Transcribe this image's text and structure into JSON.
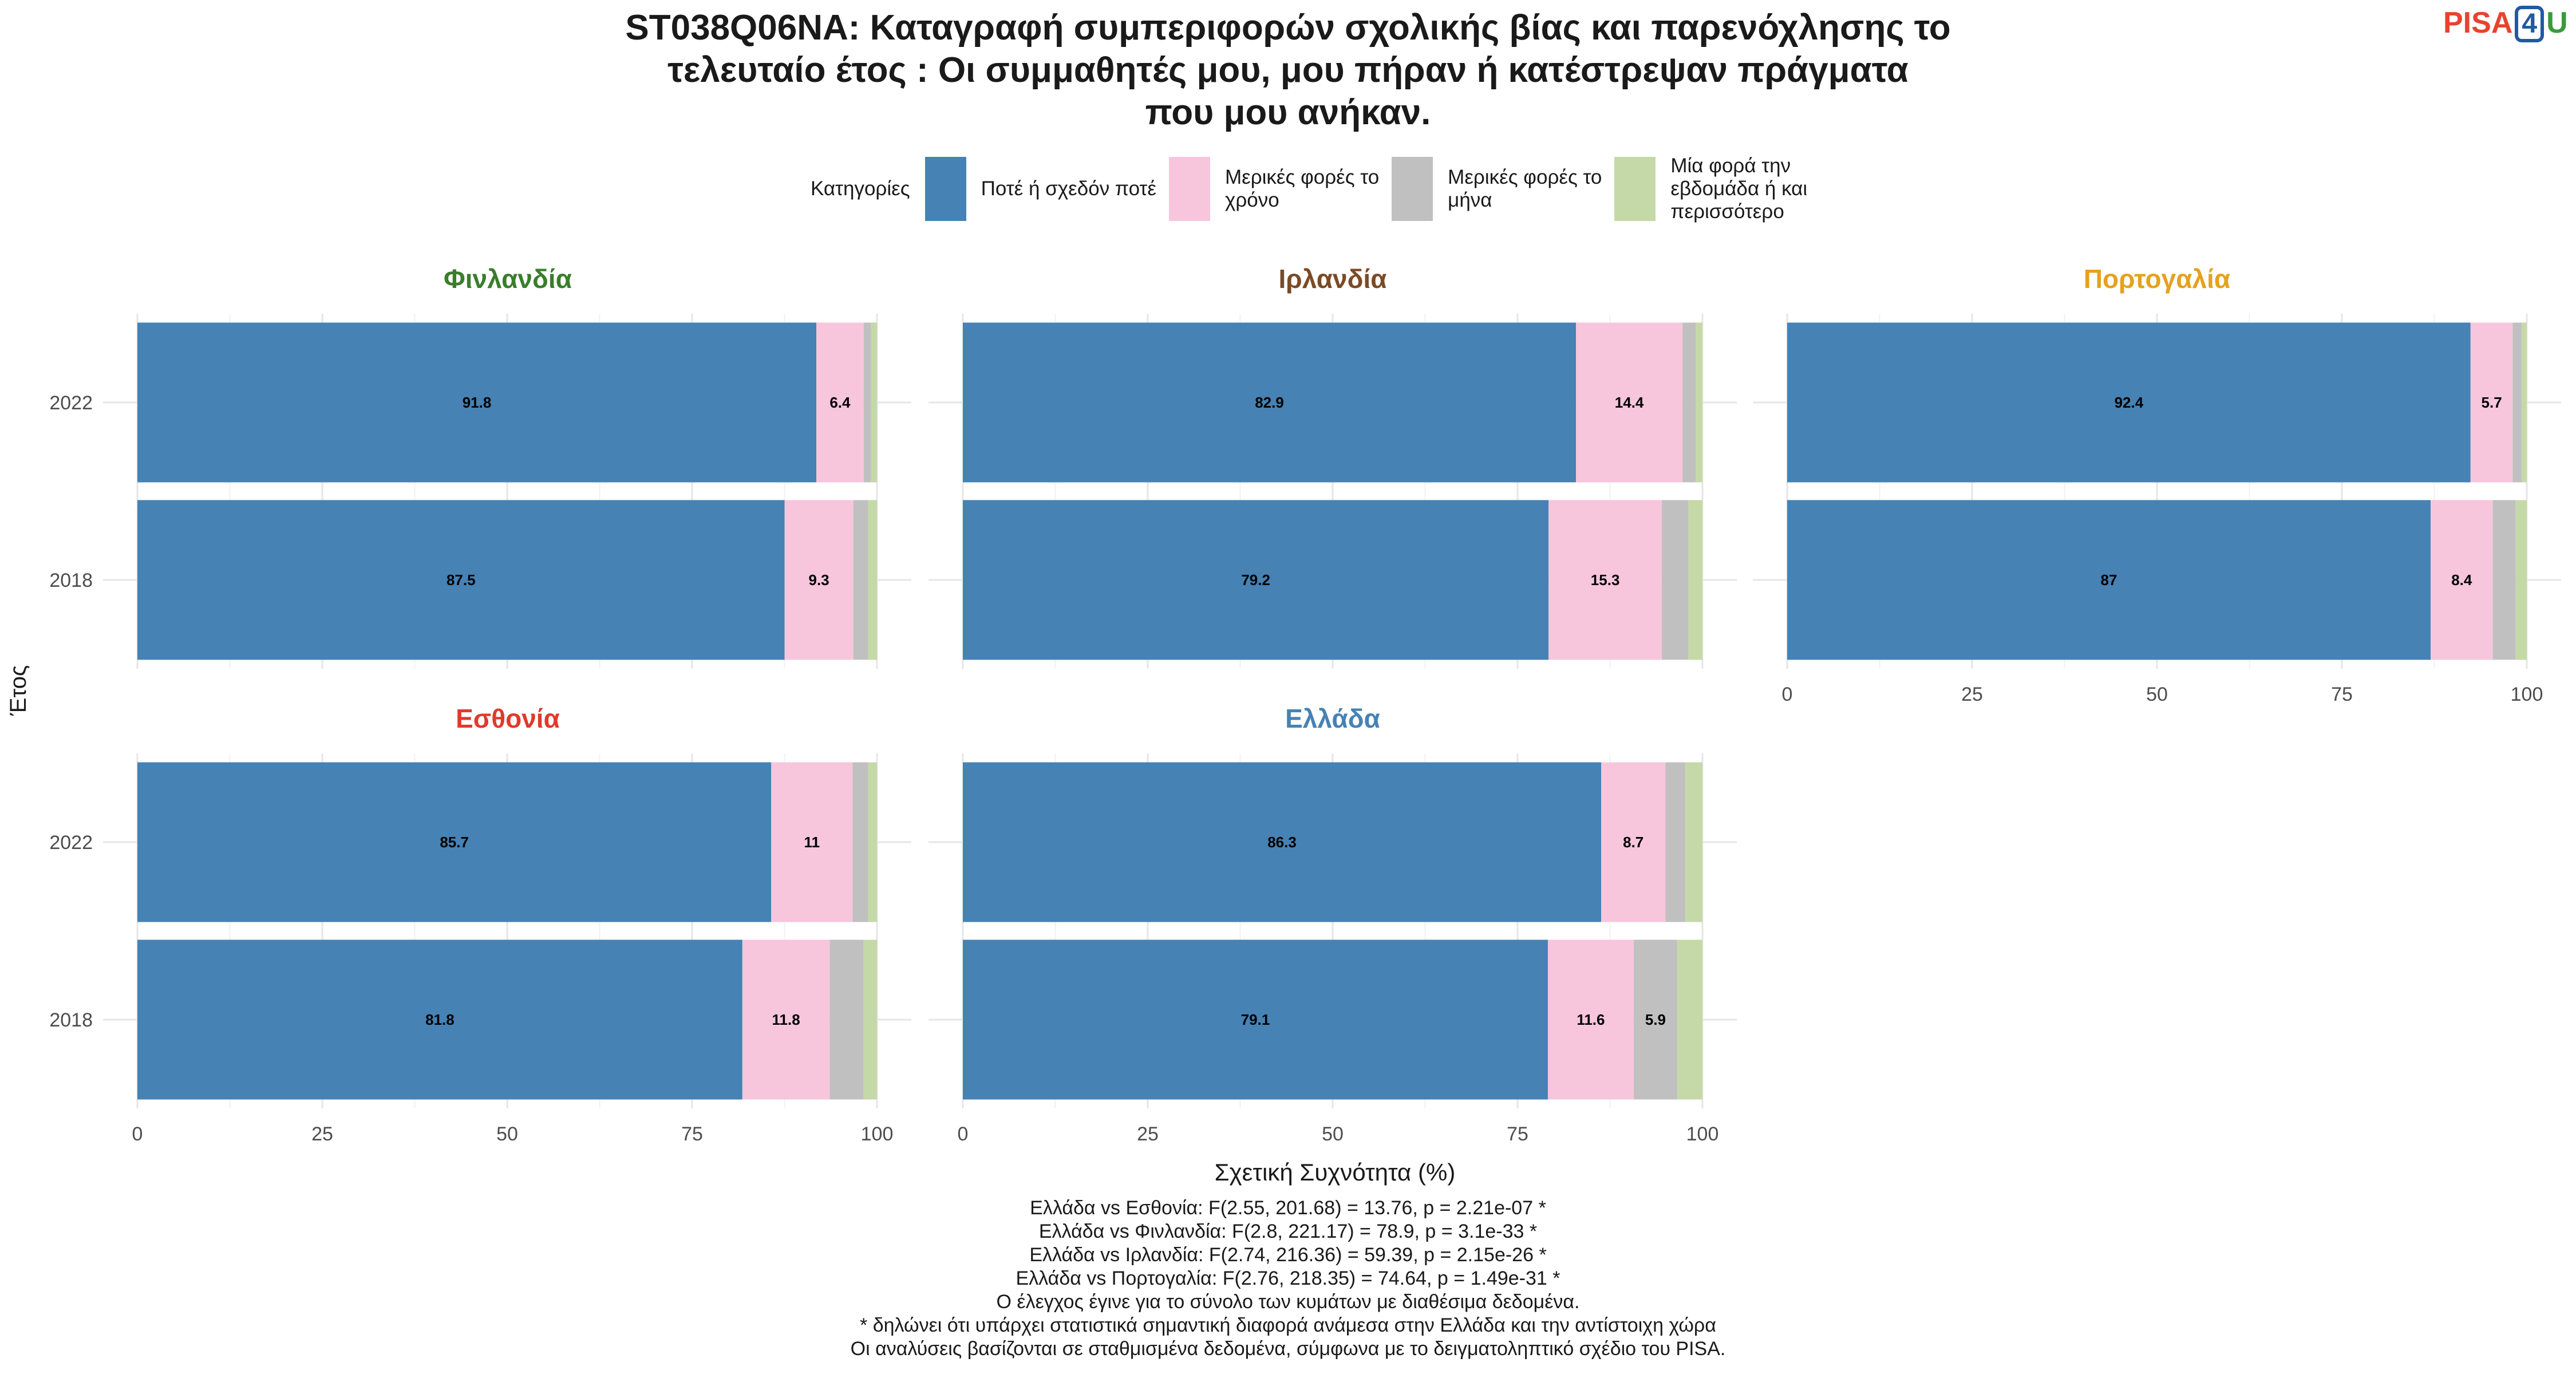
{
  "title_lines": [
    "ST038Q06NA: Καταγραφή συμπεριφορών σχολικής βίας και παρενόχλησης το",
    "τελευταίο έτος : Οι συμμαθητές μου, μου πήραν ή κατέστρεψαν πράγματα",
    "που μου ανήκαν."
  ],
  "logo": {
    "part1": "PISA",
    "part2": "4",
    "part3": "U"
  },
  "legend": {
    "title": "Κατηγορίες",
    "items": [
      {
        "label": "Ποτέ ή σχεδόν ποτέ",
        "color": "#4682b4"
      },
      {
        "label": "Μερικές φορές το\nχρόνο",
        "color": "#f7c6dc"
      },
      {
        "label": "Μερικές φορές το\nμήνα",
        "color": "#c0c0c0"
      },
      {
        "label": "Μία φορά την\nεβδομάδα ή και\nπερισσότερο",
        "color": "#c5d9a8"
      }
    ]
  },
  "axis_titles": {
    "x": "Σχετική Συχνότητα (%)",
    "y": "Έτος"
  },
  "chart_data": {
    "type": "bar",
    "orientation": "horizontal",
    "stacked": true,
    "xlim": [
      0,
      100
    ],
    "x_ticks": [
      0,
      25,
      50,
      75,
      100
    ],
    "categories": [
      "2022",
      "2018"
    ],
    "facets": [
      {
        "country": "Φινλανδία",
        "title_color": "#3a7d2c",
        "rows": [
          {
            "year": "2022",
            "values": [
              91.8,
              6.4,
              1.0,
              0.8
            ],
            "labels": [
              "91.8",
              "6.4",
              "",
              ""
            ]
          },
          {
            "year": "2018",
            "values": [
              87.5,
              9.3,
              2.0,
              1.2
            ],
            "labels": [
              "87.5",
              "9.3",
              "",
              ""
            ]
          }
        ]
      },
      {
        "country": "Ιρλανδία",
        "title_color": "#7b4a24",
        "rows": [
          {
            "year": "2022",
            "values": [
              82.9,
              14.4,
              1.8,
              0.9
            ],
            "labels": [
              "82.9",
              "14.4",
              "",
              ""
            ]
          },
          {
            "year": "2018",
            "values": [
              79.2,
              15.3,
              3.6,
              1.9
            ],
            "labels": [
              "79.2",
              "15.3",
              "",
              ""
            ]
          }
        ]
      },
      {
        "country": "Πορτογαλία",
        "title_color": "#e6a11c",
        "rows": [
          {
            "year": "2022",
            "values": [
              92.4,
              5.7,
              1.2,
              0.7
            ],
            "labels": [
              "92.4",
              "5.7",
              "",
              ""
            ]
          },
          {
            "year": "2018",
            "values": [
              87.0,
              8.4,
              3.1,
              1.5
            ],
            "labels": [
              "87",
              "8.4",
              "",
              ""
            ]
          }
        ]
      },
      {
        "country": "Εσθονία",
        "title_color": "#e03a2a",
        "rows": [
          {
            "year": "2022",
            "values": [
              85.7,
              11.0,
              2.1,
              1.2
            ],
            "labels": [
              "85.7",
              "11",
              "",
              ""
            ]
          },
          {
            "year": "2018",
            "values": [
              81.8,
              11.8,
              4.6,
              1.8
            ],
            "labels": [
              "81.8",
              "11.8",
              "",
              ""
            ]
          }
        ]
      },
      {
        "country": "Ελλάδα",
        "title_color": "#4682b4",
        "rows": [
          {
            "year": "2022",
            "values": [
              86.3,
              8.7,
              2.7,
              2.3
            ],
            "labels": [
              "86.3",
              "8.7",
              "",
              ""
            ]
          },
          {
            "year": "2018",
            "values": [
              79.1,
              11.6,
              5.9,
              3.4
            ],
            "labels": [
              "79.1",
              "11.6",
              "5.9",
              ""
            ]
          }
        ]
      }
    ]
  },
  "footnotes": [
    "Ελλάδα vs Εσθονία: F(2.55, 201.68) = 13.76, p = 2.21e-07 *",
    "Ελλάδα vs Φινλανδία: F(2.8, 221.17) = 78.9, p = 3.1e-33 *",
    "Ελλάδα vs Ιρλανδία: F(2.74, 216.36) = 59.39, p = 2.15e-26 *",
    "Ελλάδα vs Πορτογαλία: F(2.76, 218.35) = 74.64, p = 1.49e-31 *",
    "Ο έλεγχος έγινε για το σύνολο των κυμάτων με διαθέσιμα δεδομένα.",
    "* δηλώνει ότι υπάρχει στατιστικά σημαντική διαφορά ανάμεσα στην Ελλάδα και την αντίστοιχη χώρα",
    "Οι αναλύσεις βασίζονται σε σταθμισμένα δεδομένα, σύμφωνα με το δειγματοληπτικό σχέδιο του PISA."
  ]
}
